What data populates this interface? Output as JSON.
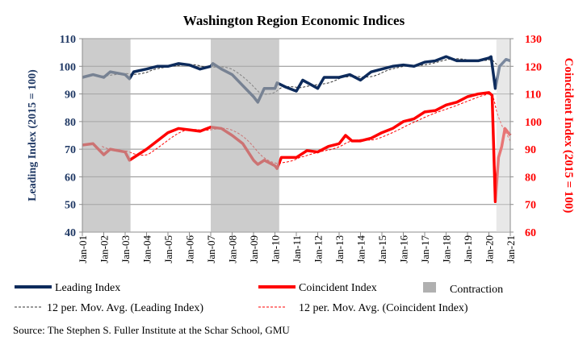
{
  "chart_data": {
    "type": "line",
    "title": "Washington Region Economic Indices",
    "ylabel_left": "Leading Index (2015 = 100)",
    "ylabel_right": "Coincident Index (2015 = 100)",
    "ylim_left": [
      40,
      110
    ],
    "ylim_right": [
      60,
      130
    ],
    "yticks_left": [
      "40",
      "50",
      "60",
      "70",
      "80",
      "90",
      "100",
      "110"
    ],
    "yticks_right": [
      "60",
      "70",
      "80",
      "90",
      "100",
      "110",
      "120",
      "130"
    ],
    "xlim": [
      2001,
      2021
    ],
    "xticks": [
      "Jan-01",
      "Jan-02",
      "Jan-03",
      "Jan-04",
      "Jan-05",
      "Jan-06",
      "Jan-07",
      "Jan-08",
      "Jan-09",
      "Jan-10",
      "Jan-11",
      "Jan-12",
      "Jan-13",
      "Jan-14",
      "Jan-15",
      "Jan-16",
      "Jan-17",
      "Jan-18",
      "Jan-19",
      "Jan-20",
      "Jan-21"
    ],
    "grid": true,
    "legend_placement": "bottom",
    "colors": {
      "leading": "#0d2b5c",
      "coincident": "#ff0000",
      "contraction": "#b0b0b0",
      "contraction_light": "#d6d6d6",
      "left_axis": "#1f3864",
      "right_axis": "#ff0000"
    },
    "contractions": [
      [
        2001.0,
        2003.25
      ],
      [
        2007.0,
        2010.2
      ],
      [
        2020.35,
        2021.0
      ]
    ],
    "series": [
      {
        "name": "Leading Index",
        "axis": "left",
        "x": [
          2001,
          2001.5,
          2002,
          2002.3,
          2003,
          2003.2,
          2003.4,
          2004,
          2004.5,
          2005,
          2005.5,
          2006,
          2006.5,
          2007,
          2007.1,
          2007.5,
          2008,
          2008.5,
          2009,
          2009.2,
          2009.5,
          2010,
          2010.1,
          2010.5,
          2011,
          2011.3,
          2012,
          2012.3,
          2013,
          2013.5,
          2014,
          2014.5,
          2015,
          2015.5,
          2016,
          2016.5,
          2017,
          2017.5,
          2018,
          2018.5,
          2019,
          2019.5,
          2020,
          2020.1,
          2020.3,
          2020.5,
          2020.8,
          2021
        ],
        "y": [
          96,
          97,
          96,
          98,
          97,
          95.5,
          98,
          99,
          100,
          100,
          101,
          100.5,
          99,
          100,
          101,
          99,
          97,
          93,
          89,
          87,
          92,
          92,
          94,
          92.5,
          91,
          95,
          92,
          96,
          96,
          97,
          95,
          98,
          99,
          100,
          100.5,
          100,
          101.5,
          102,
          103.5,
          102,
          102,
          102,
          103,
          103.5,
          92,
          100,
          102.5,
          102
        ]
      },
      {
        "name": "Coincident Index",
        "axis": "right",
        "x": [
          2001,
          2001.5,
          2002,
          2002.3,
          2003,
          2003.2,
          2003.6,
          2004,
          2004.5,
          2005,
          2005.5,
          2006,
          2006.5,
          2007,
          2007.5,
          2008,
          2008.5,
          2009,
          2009.2,
          2009.5,
          2010,
          2010.1,
          2010.3,
          2011,
          2011.5,
          2012,
          2012.5,
          2013,
          2013.3,
          2013.6,
          2014,
          2014.5,
          2015,
          2015.5,
          2016,
          2016.5,
          2017,
          2017.5,
          2018,
          2018.5,
          2019,
          2019.5,
          2020,
          2020.15,
          2020.3,
          2020.45,
          2020.6,
          2020.75,
          2021
        ],
        "y": [
          91.5,
          92,
          88,
          90,
          89,
          86,
          88,
          90,
          93,
          96,
          97.5,
          97,
          96.5,
          98,
          97.5,
          95,
          92,
          86,
          84.5,
          86,
          84,
          83,
          87,
          87,
          89.5,
          89,
          91,
          92,
          95,
          93,
          93,
          94,
          96,
          97.5,
          100,
          101,
          103.5,
          104,
          106,
          107,
          109,
          110,
          110.5,
          109.5,
          71,
          87,
          91,
          97.5,
          95
        ]
      }
    ],
    "legend": {
      "leading": "Leading Index",
      "coincident": "Coincident Index",
      "contraction": "Contraction",
      "ma_leading": "12 per. Mov. Avg. (Leading Index)",
      "ma_coincident": "12 per. Mov. Avg. (Coincident Index)"
    },
    "source": "Source: The Stephen S. Fuller Institute at the Schar School, GMU"
  }
}
